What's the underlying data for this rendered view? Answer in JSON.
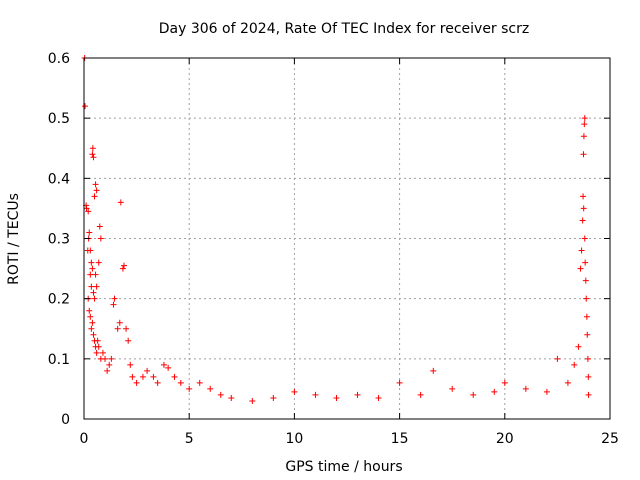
{
  "chart_data": {
    "type": "scatter",
    "title": "Day 306 of 2024, Rate Of TEC Index for receiver scrz",
    "xlabel": "GPS time / hours",
    "ylabel": "ROTI / TECUs",
    "xlim": [
      0,
      25
    ],
    "ylim": [
      0,
      0.6
    ],
    "x_ticks": [
      "0",
      "5",
      "10",
      "15",
      "20",
      "25"
    ],
    "y_ticks": [
      "0",
      "0.1",
      "0.2",
      "0.3",
      "0.4",
      "0.5",
      "0.6"
    ],
    "grid": true,
    "marker": "plus",
    "series": [
      {
        "color": "#ff0000",
        "points": [
          [
            0.03,
            0.6
          ],
          [
            0.05,
            0.52
          ],
          [
            0.1,
            0.355
          ],
          [
            0.12,
            0.35
          ],
          [
            0.2,
            0.345
          ],
          [
            0.22,
            0.3
          ],
          [
            0.18,
            0.28
          ],
          [
            0.25,
            0.31
          ],
          [
            0.3,
            0.28
          ],
          [
            0.35,
            0.26
          ],
          [
            0.4,
            0.44
          ],
          [
            0.42,
            0.45
          ],
          [
            0.45,
            0.435
          ],
          [
            0.5,
            0.37
          ],
          [
            0.55,
            0.39
          ],
          [
            0.6,
            0.38
          ],
          [
            0.3,
            0.24
          ],
          [
            0.35,
            0.22
          ],
          [
            0.4,
            0.25
          ],
          [
            0.45,
            0.21
          ],
          [
            0.5,
            0.2
          ],
          [
            0.55,
            0.24
          ],
          [
            0.6,
            0.22
          ],
          [
            0.7,
            0.26
          ],
          [
            0.75,
            0.32
          ],
          [
            0.8,
            0.3
          ],
          [
            0.2,
            0.2
          ],
          [
            0.25,
            0.18
          ],
          [
            0.3,
            0.17
          ],
          [
            0.35,
            0.15
          ],
          [
            0.4,
            0.16
          ],
          [
            0.45,
            0.14
          ],
          [
            0.5,
            0.13
          ],
          [
            0.55,
            0.12
          ],
          [
            0.6,
            0.11
          ],
          [
            0.65,
            0.13
          ],
          [
            0.7,
            0.12
          ],
          [
            0.8,
            0.1
          ],
          [
            0.9,
            0.11
          ],
          [
            1.0,
            0.1
          ],
          [
            1.1,
            0.08
          ],
          [
            1.2,
            0.09
          ],
          [
            1.3,
            0.1
          ],
          [
            1.4,
            0.19
          ],
          [
            1.45,
            0.2
          ],
          [
            1.6,
            0.15
          ],
          [
            1.7,
            0.16
          ],
          [
            1.75,
            0.36
          ],
          [
            1.85,
            0.25
          ],
          [
            1.9,
            0.255
          ],
          [
            2.0,
            0.15
          ],
          [
            2.1,
            0.13
          ],
          [
            2.2,
            0.09
          ],
          [
            2.3,
            0.07
          ],
          [
            2.5,
            0.06
          ],
          [
            2.8,
            0.07
          ],
          [
            3.0,
            0.08
          ],
          [
            3.3,
            0.07
          ],
          [
            3.5,
            0.06
          ],
          [
            3.8,
            0.09
          ],
          [
            4.0,
            0.085
          ],
          [
            4.3,
            0.07
          ],
          [
            4.6,
            0.06
          ],
          [
            5.0,
            0.05
          ],
          [
            5.5,
            0.06
          ],
          [
            6.0,
            0.05
          ],
          [
            6.5,
            0.04
          ],
          [
            7.0,
            0.035
          ],
          [
            8.0,
            0.03
          ],
          [
            9.0,
            0.035
          ],
          [
            10.0,
            0.045
          ],
          [
            11.0,
            0.04
          ],
          [
            12.0,
            0.035
          ],
          [
            13.0,
            0.04
          ],
          [
            14.0,
            0.035
          ],
          [
            15.0,
            0.06
          ],
          [
            16.0,
            0.04
          ],
          [
            16.6,
            0.08
          ],
          [
            17.5,
            0.05
          ],
          [
            18.5,
            0.04
          ],
          [
            19.5,
            0.045
          ],
          [
            20.0,
            0.06
          ],
          [
            21.0,
            0.05
          ],
          [
            22.0,
            0.045
          ],
          [
            22.5,
            0.1
          ],
          [
            23.0,
            0.06
          ],
          [
            23.3,
            0.09
          ],
          [
            23.5,
            0.12
          ],
          [
            23.6,
            0.25
          ],
          [
            23.65,
            0.28
          ],
          [
            23.7,
            0.33
          ],
          [
            23.72,
            0.37
          ],
          [
            23.74,
            0.44
          ],
          [
            23.76,
            0.47
          ],
          [
            23.78,
            0.49
          ],
          [
            23.8,
            0.5
          ],
          [
            23.75,
            0.35
          ],
          [
            23.8,
            0.3
          ],
          [
            23.82,
            0.26
          ],
          [
            23.85,
            0.23
          ],
          [
            23.87,
            0.2
          ],
          [
            23.9,
            0.17
          ],
          [
            23.92,
            0.14
          ],
          [
            23.95,
            0.1
          ],
          [
            23.97,
            0.07
          ],
          [
            23.98,
            0.04
          ]
        ]
      }
    ]
  }
}
